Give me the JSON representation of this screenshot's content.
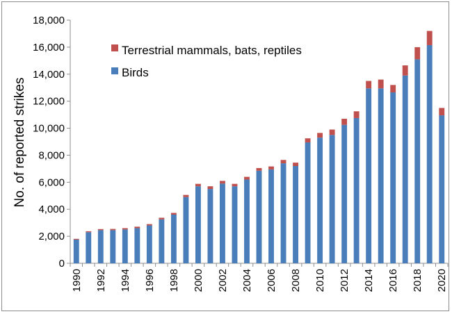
{
  "chart_data": {
    "type": "bar",
    "stacked": true,
    "ylabel": "No. of reported strikes",
    "ylim": [
      0,
      18000
    ],
    "yticks": [
      "0",
      "2,000",
      "4,000",
      "6,000",
      "8,000",
      "10,000",
      "12,000",
      "14,000",
      "16,000",
      "18,000"
    ],
    "ytick_values": [
      0,
      2000,
      4000,
      6000,
      8000,
      10000,
      12000,
      14000,
      16000,
      18000
    ],
    "grid": false,
    "legend_position": "top-left",
    "categories": [
      "1990",
      "1991",
      "1992",
      "1993",
      "1994",
      "1995",
      "1996",
      "1997",
      "1998",
      "1999",
      "2000",
      "2001",
      "2002",
      "2003",
      "2004",
      "2005",
      "2006",
      "2007",
      "2008",
      "2009",
      "2010",
      "2011",
      "2012",
      "2013",
      "2014",
      "2015",
      "2016",
      "2017",
      "2018",
      "2019",
      "2020"
    ],
    "x_tick_labels": [
      "1990",
      "1992",
      "1994",
      "1996",
      "1998",
      "2000",
      "2002",
      "2004",
      "2006",
      "2008",
      "2010",
      "2012",
      "2014",
      "2016",
      "2018",
      "2020"
    ],
    "series": [
      {
        "name": "Birds",
        "color": "#4a7ebb",
        "values": [
          1750,
          2300,
          2450,
          2450,
          2500,
          2600,
          2800,
          3250,
          3600,
          4900,
          5700,
          5500,
          5900,
          5700,
          6200,
          6850,
          6950,
          7400,
          7200,
          8950,
          9300,
          9500,
          10250,
          10750,
          12950,
          12950,
          12650,
          13900,
          15100,
          16150,
          10950
        ]
      },
      {
        "name": "Terrestrial mammals, bats, reptiles",
        "color": "#c0504d",
        "values": [
          60,
          70,
          80,
          90,
          100,
          110,
          100,
          120,
          130,
          160,
          180,
          200,
          200,
          180,
          200,
          200,
          220,
          250,
          250,
          300,
          350,
          400,
          450,
          500,
          550,
          650,
          550,
          750,
          900,
          1050,
          550
        ]
      }
    ]
  }
}
